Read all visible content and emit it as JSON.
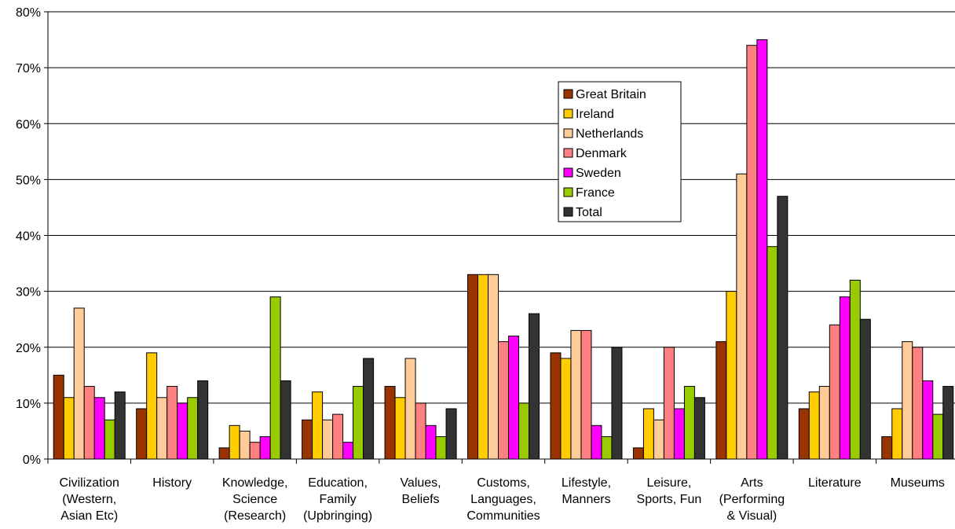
{
  "chart_data": {
    "type": "bar",
    "title": "",
    "xlabel": "",
    "ylabel": "",
    "ylim": [
      0,
      80
    ],
    "y_ticks": [
      "0%",
      "10%",
      "20%",
      "30%",
      "40%",
      "50%",
      "60%",
      "70%",
      "80%"
    ],
    "y_tick_values": [
      0,
      10,
      20,
      30,
      40,
      50,
      60,
      70,
      80
    ],
    "grid": true,
    "legend_position": "top-right-of-center",
    "categories": [
      [
        "Civilization",
        "(Western,",
        "Asian Etc)"
      ],
      [
        "History"
      ],
      [
        "Knowledge,",
        "Science",
        "(Research)"
      ],
      [
        "Education,",
        "Family",
        "(Upbringing)"
      ],
      [
        "Values,",
        "Beliefs"
      ],
      [
        "Customs,",
        "Languages,",
        "Communities"
      ],
      [
        "Lifestyle,",
        "Manners"
      ],
      [
        "Leisure,",
        "Sports, Fun"
      ],
      [
        "Arts",
        "(Performing",
        "& Visual)"
      ],
      [
        "Literature"
      ],
      [
        "Museums"
      ]
    ],
    "series": [
      {
        "name": "Great Britain",
        "color": "#993300",
        "values": [
          15,
          9,
          2,
          7,
          13,
          33,
          19,
          2,
          21,
          9,
          4
        ]
      },
      {
        "name": "Ireland",
        "color": "#FFCC00",
        "values": [
          11,
          19,
          6,
          12,
          11,
          33,
          18,
          9,
          30,
          12,
          9
        ]
      },
      {
        "name": "Netherlands",
        "color": "#FFCC99",
        "values": [
          27,
          11,
          5,
          7,
          18,
          33,
          23,
          7,
          51,
          13,
          21
        ]
      },
      {
        "name": "Denmark",
        "color": "#FF8080",
        "values": [
          13,
          13,
          3,
          8,
          10,
          21,
          23,
          20,
          74,
          24,
          20
        ]
      },
      {
        "name": "Sweden",
        "color": "#FF00FF",
        "values": [
          11,
          10,
          4,
          3,
          6,
          22,
          6,
          9,
          75,
          29,
          14
        ]
      },
      {
        "name": "France",
        "color": "#99CC00",
        "values": [
          7,
          11,
          29,
          13,
          4,
          10,
          4,
          13,
          38,
          32,
          8
        ]
      },
      {
        "name": "Total",
        "color": "#333333",
        "values": [
          12,
          14,
          14,
          18,
          9,
          26,
          20,
          11,
          47,
          25,
          13
        ]
      }
    ]
  }
}
